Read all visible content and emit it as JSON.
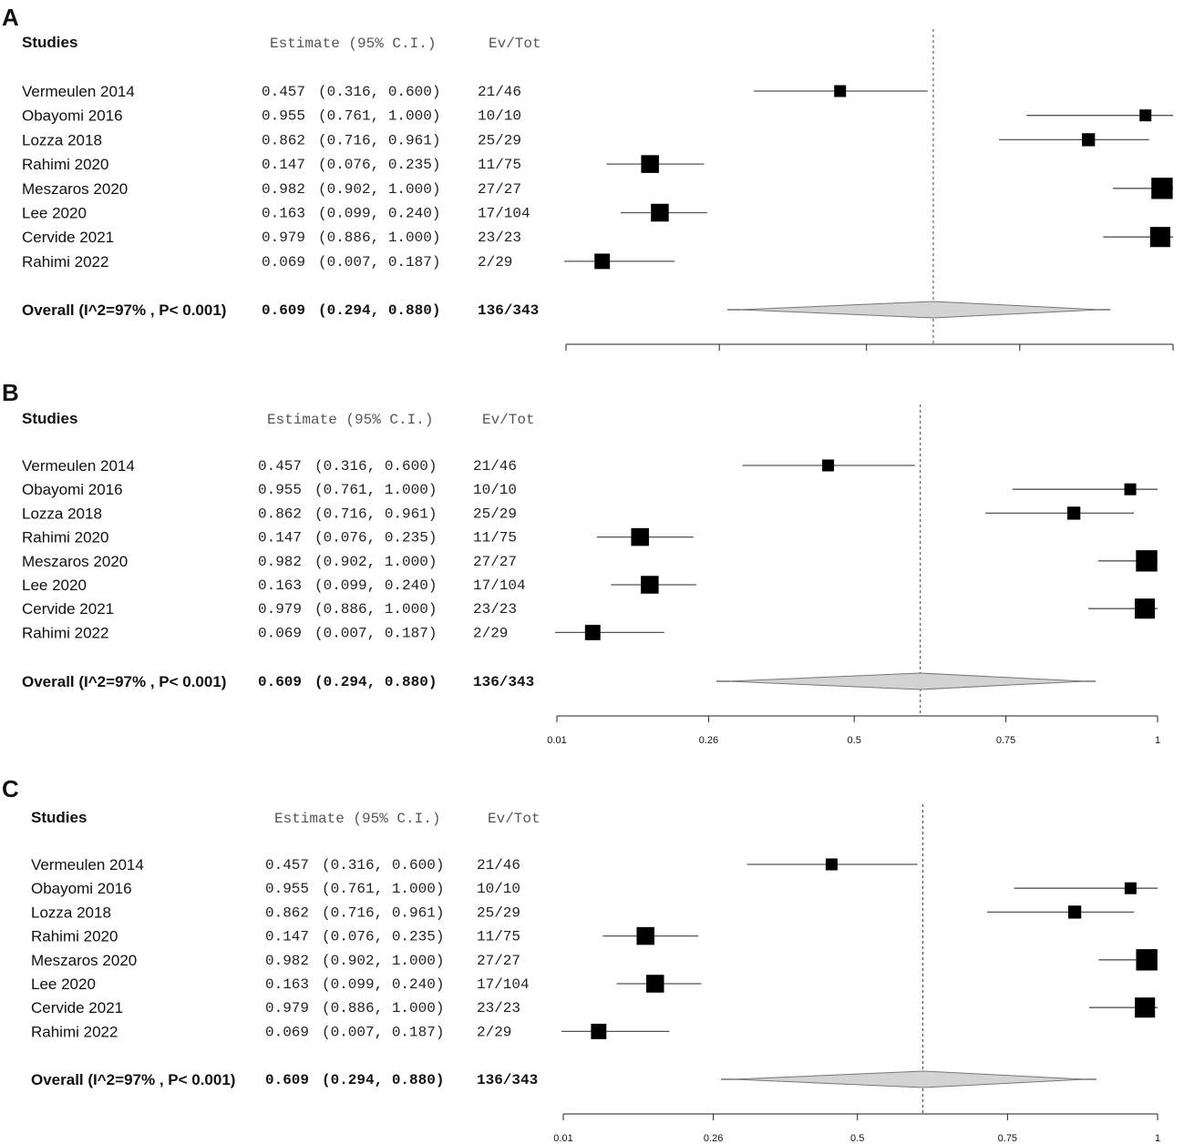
{
  "chart_data": {
    "type": "forest",
    "headers": {
      "studies": "Studies",
      "estimate": "Estimate (95% C.I.)",
      "evtot": "Ev/Tot"
    },
    "xlim": [
      0.01,
      1
    ],
    "ticks": [
      0.01,
      0.26,
      0.5,
      0.75,
      1
    ],
    "tick_labels": [
      "0.01",
      "0.26",
      "0.5",
      "0.75",
      "1"
    ],
    "reference_line": 0.609,
    "studies": [
      {
        "name": "Vermeulen 2014",
        "estimate": 0.457,
        "lower": 0.316,
        "upper": 0.6,
        "est_text": "0.457",
        "ci_text": "(0.316, 0.600)",
        "evtot": "21/46",
        "weight": 1.0
      },
      {
        "name": "Obayomi 2016",
        "estimate": 0.955,
        "lower": 0.761,
        "upper": 1.0,
        "est_text": "0.955",
        "ci_text": "(0.761, 1.000)",
        "evtot": "10/10",
        "weight": 1.0
      },
      {
        "name": "Lozza 2018",
        "estimate": 0.862,
        "lower": 0.716,
        "upper": 0.961,
        "est_text": "0.862",
        "ci_text": "(0.716, 0.961)",
        "evtot": "25/29",
        "weight": 1.1
      },
      {
        "name": "Rahimi 2020",
        "estimate": 0.147,
        "lower": 0.076,
        "upper": 0.235,
        "est_text": "0.147",
        "ci_text": "(0.076, 0.235)",
        "evtot": "11/75",
        "weight": 1.5
      },
      {
        "name": "Meszaros 2020",
        "estimate": 0.982,
        "lower": 0.902,
        "upper": 1.0,
        "est_text": "0.982",
        "ci_text": "(0.902, 1.000)",
        "evtot": "27/27",
        "weight": 1.8
      },
      {
        "name": "Lee 2020",
        "estimate": 0.163,
        "lower": 0.099,
        "upper": 0.24,
        "est_text": "0.163",
        "ci_text": "(0.099, 0.240)",
        "evtot": "17/104",
        "weight": 1.5
      },
      {
        "name": "Cervide 2021",
        "estimate": 0.979,
        "lower": 0.886,
        "upper": 1.0,
        "est_text": "0.979",
        "ci_text": "(0.886, 1.000)",
        "evtot": "23/23",
        "weight": 1.7
      },
      {
        "name": "Rahimi   2022",
        "estimate": 0.069,
        "lower": 0.007,
        "upper": 0.187,
        "est_text": "0.069",
        "ci_text": "(0.007, 0.187)",
        "evtot": "2/29",
        "weight": 1.3
      }
    ],
    "overall": {
      "label": "Overall (I^2=97% , P< 0.001)",
      "estimate": 0.609,
      "lower": 0.294,
      "upper": 0.88,
      "est_text": "0.609",
      "ci_text": "(0.294, 0.880)",
      "evtot": "136/343"
    },
    "panels": [
      {
        "letter": "A",
        "show_tick_labels": false
      },
      {
        "letter": "B",
        "show_tick_labels": true
      },
      {
        "letter": "C",
        "show_tick_labels": true
      }
    ]
  }
}
